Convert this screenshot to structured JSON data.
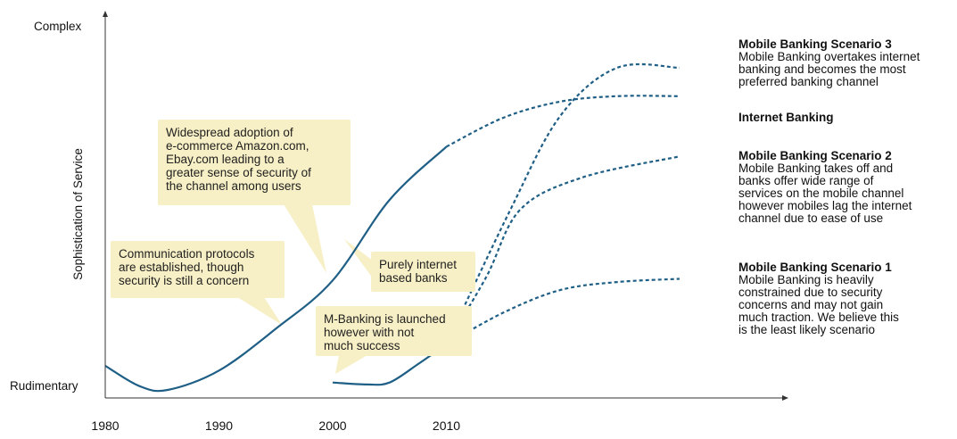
{
  "chart_data": {
    "type": "line",
    "title": "",
    "ylabel": "Sophistication of Service",
    "xlabel": "",
    "y_levels": [
      "Rudimentary",
      "Complex"
    ],
    "ylim": [
      0,
      10
    ],
    "xlim": [
      1980,
      2032
    ],
    "x_ticks": [
      1980,
      1990,
      2000,
      2010
    ],
    "grid": false,
    "series": [
      {
        "name": "",
        "style": "solid",
        "points": [
          [
            1980,
            0.75
          ],
          [
            1983,
            0.12
          ],
          [
            1985.5,
            0.0
          ],
          [
            1990,
            0.6
          ],
          [
            1995,
            1.9
          ],
          [
            2000,
            3.4
          ],
          [
            2005,
            5.9
          ],
          [
            2010,
            7.55
          ]
        ]
      },
      {
        "name": "Internet Banking",
        "style": "dashed",
        "points": [
          [
            2010,
            7.55
          ],
          [
            2015,
            8.45
          ],
          [
            2020,
            8.95
          ],
          [
            2025,
            9.12
          ],
          [
            2030.5,
            9.12
          ]
        ]
      },
      {
        "name": "",
        "style": "solid",
        "points": [
          [
            2000,
            0.23
          ],
          [
            2003,
            0.17
          ],
          [
            2005,
            0.23
          ],
          [
            2007.5,
            0.8
          ],
          [
            2010,
            1.42
          ]
        ]
      },
      {
        "name": "Mobile Banking Scenario 3",
        "style": "dashed",
        "points": [
          [
            2010,
            1.42
          ],
          [
            2015.5,
            5.5
          ],
          [
            2020,
            8.5
          ],
          [
            2025,
            10.0
          ],
          [
            2030.5,
            10.0
          ]
        ]
      },
      {
        "name": "Mobile Banking Scenario 2",
        "style": "dashed",
        "points": [
          [
            2010,
            1.42
          ],
          [
            2013.5,
            3.5
          ],
          [
            2016.5,
            5.6
          ],
          [
            2022,
            6.6
          ],
          [
            2030.5,
            7.25
          ]
        ]
      },
      {
        "name": "Mobile Banking Scenario 1",
        "style": "dashed",
        "points": [
          [
            2010,
            1.42
          ],
          [
            2015,
            2.4
          ],
          [
            2020,
            3.1
          ],
          [
            2025,
            3.35
          ],
          [
            2030.5,
            3.45
          ]
        ]
      }
    ],
    "callouts": [
      "Widespread adoption of\ne-commerce Amazon.com,\nEbay.com leading to a\ngreater sense of security of\nthe channel among users",
      "Communication protocols\nare established, though\nsecurity is still a concern",
      "Purely internet\nbased banks",
      "M-Banking is launched\nhowever with not\nmuch success"
    ],
    "annotations": [
      {
        "title": "Mobile Banking Scenario 3",
        "text": "Mobile Banking overtakes internet\nbanking and becomes the most\npreferred banking channel"
      },
      {
        "title": "Internet Banking",
        "text": ""
      },
      {
        "title": "Mobile Banking Scenario 2",
        "text": "Mobile Banking takes off and\nbanks offer wide range of\nservices on the mobile channel\nhowever mobiles lag the internet\nchannel due to ease of use"
      },
      {
        "title": "Mobile Banking Scenario 1",
        "text": "Mobile Banking is heavily\nconstrained due to security\nconcerns and may not gain\nmuch traction. We believe this\nis the least likely scenario"
      }
    ],
    "colors": {
      "line": "#1f5f86",
      "callout_fill": "#f7efc5",
      "axis": "#333333"
    }
  }
}
